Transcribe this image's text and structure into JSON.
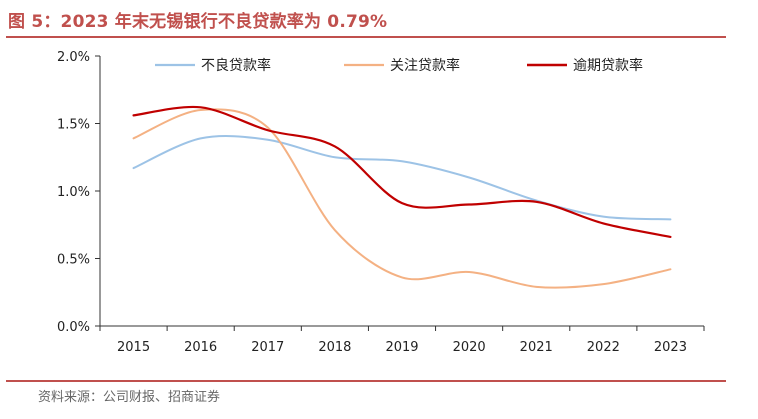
{
  "title": "图 5：2023 年末无锡银行不良贷款率为 0.79%",
  "source": "资料来源：公司财报、招商证券",
  "chart_data": {
    "type": "line",
    "x": [
      "2015",
      "2016",
      "2017",
      "2018",
      "2019",
      "2020",
      "2021",
      "2022",
      "2023"
    ],
    "y_ticks": [
      "2.0%",
      "1.5%",
      "1.0%",
      "0.5%",
      "0.0%"
    ],
    "ylim": [
      0,
      2.0
    ],
    "legend_position": "top",
    "grid": false,
    "series": [
      {
        "name": "不良贷款率",
        "color": "#9dc3e6",
        "values": [
          1.17,
          1.39,
          1.38,
          1.25,
          1.22,
          1.1,
          0.93,
          0.81,
          0.79
        ]
      },
      {
        "name": "关注贷款率",
        "color": "#f4b183",
        "values": [
          1.39,
          1.6,
          1.47,
          0.71,
          0.36,
          0.4,
          0.29,
          0.31,
          0.42
        ]
      },
      {
        "name": "逾期贷款率",
        "color": "#c00000",
        "values": [
          1.56,
          1.62,
          1.45,
          1.33,
          0.91,
          0.9,
          0.92,
          0.76,
          0.66
        ]
      }
    ]
  }
}
